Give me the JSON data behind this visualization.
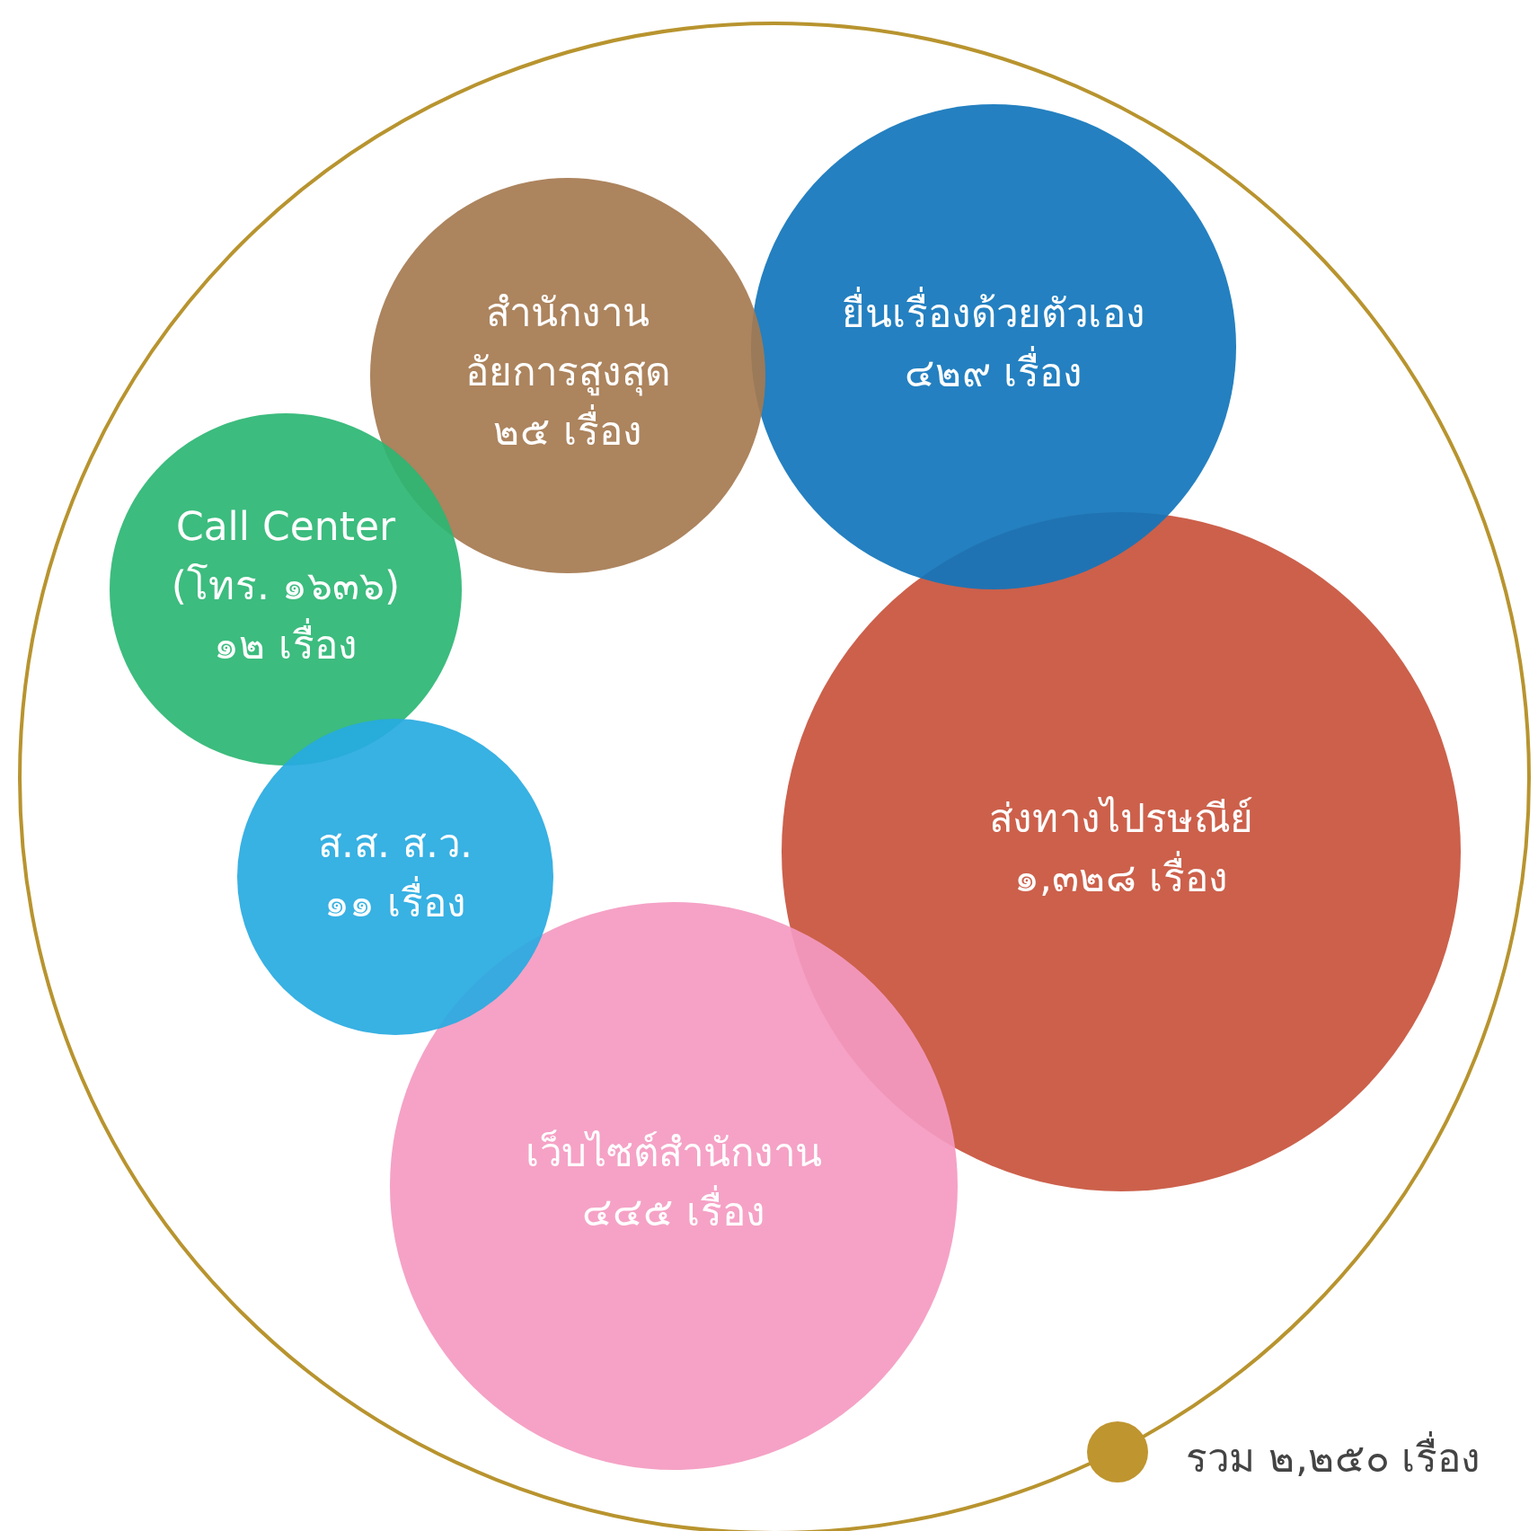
{
  "chart_data": {
    "type": "other",
    "categories": [
      "ส่งทางไปรษณีย์",
      "เว็บไซต์สำนักงาน",
      "ยื่นเรื่องด้วยตัวเอง",
      "สำนักงาน\nอัยการสูงสุด",
      "Call Center\n(โทร. ๑๖๓๖)",
      "ส.ส. ส.ว."
    ],
    "values": [
      1328,
      445,
      429,
      25,
      12,
      11
    ],
    "value_labels": [
      "๑,๓๒๘ เรื่อง",
      "๔๔๕ เรื่อง",
      "๔๒๙ เรื่อง",
      "๒๕ เรื่อง",
      "๑๒ เรื่อง",
      "๑๑ เรื่อง"
    ],
    "colors": [
      "#c8533c",
      "#f49ac1",
      "#1175bb",
      "#a57950",
      "#2bb673",
      "#27aae1"
    ],
    "annotations": [
      "รวม ๒,๒๕๐ เรื่อง"
    ]
  }
}
